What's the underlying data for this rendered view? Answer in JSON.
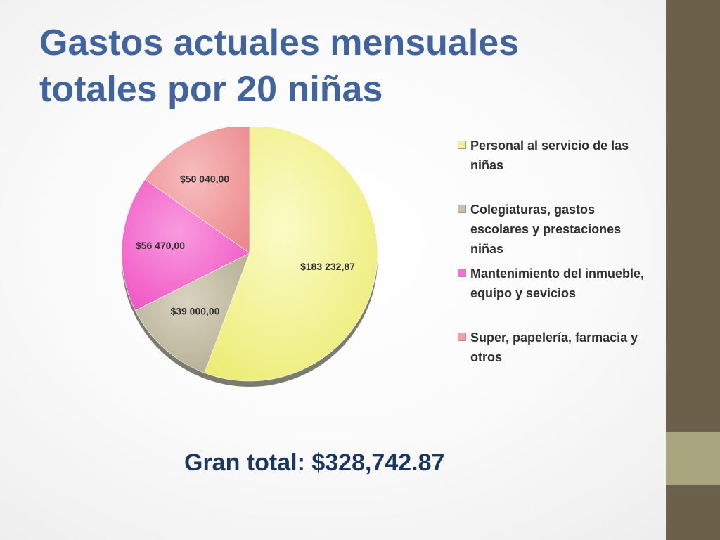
{
  "slide": {
    "title": "Gastos actuales mensuales totales por 20 niñas",
    "grand_total": "Gran total: $328,742.87"
  },
  "theme": {
    "title_color": "#41639e",
    "total_color": "#1c375f",
    "sidebar_dark": "#6b604a",
    "sidebar_light": "#a9a57e"
  },
  "chart_data": {
    "type": "pie",
    "title": "",
    "categories": [
      "Personal al servicio de las niñas",
      "Colegiaturas, gastos escolares y prestaciones niñas",
      "Mantenimiento del inmueble, equipo y sevicios",
      "Super, papelería, farmacia y otros"
    ],
    "values": [
      183232.87,
      39000.0,
      56470.0,
      50040.0
    ],
    "labels": [
      "$183 232,87",
      "$39 000,00",
      "$56 470,00",
      "$50 040,00"
    ],
    "colors": [
      "#f3f38e",
      "#c7c1a9",
      "#f76fcf",
      "#f2a0a2"
    ],
    "legend_position": "right"
  }
}
